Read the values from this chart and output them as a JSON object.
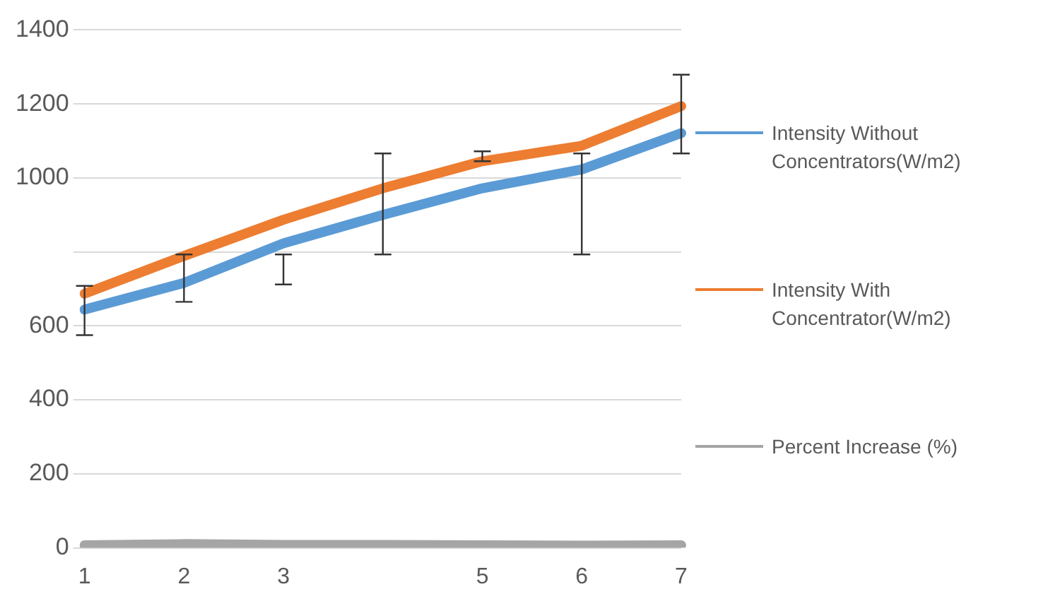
{
  "chart_data": {
    "type": "line",
    "categories": [
      "1",
      "2",
      "3",
      null,
      "5",
      "6",
      "7"
    ],
    "series": [
      {
        "name": "Intensity Without Concentrators(W/m2)",
        "color": "#5b9bd5",
        "values": [
          644,
          716,
          823,
          900,
          972,
          1023,
          1121
        ],
        "errors": [
          [
            575,
            708
          ],
          [
            665,
            793
          ],
          [
            712,
            793
          ],
          [
            793,
            1066
          ],
          [
            1045,
            1072
          ],
          [
            793,
            1066
          ],
          [
            1066,
            1279
          ]
        ]
      },
      {
        "name": "Intensity With Concentrator(W/m2)",
        "color": "#ed7d31",
        "values": [
          687,
          789,
          887,
          972,
          1045,
          1087,
          1194
        ]
      },
      {
        "name": "Percent Increase (%)",
        "color": "#a5a5a5",
        "values": [
          7,
          10,
          8,
          8,
          7,
          6,
          7
        ]
      }
    ],
    "ylim": [
      0,
      1400
    ],
    "yticks": [
      0,
      200,
      400,
      600,
      {
        "value": 800,
        "label": null
      },
      1000,
      1200,
      1400
    ],
    "grid": "y",
    "legend": "right",
    "marker": "none",
    "line_style": "solid"
  }
}
